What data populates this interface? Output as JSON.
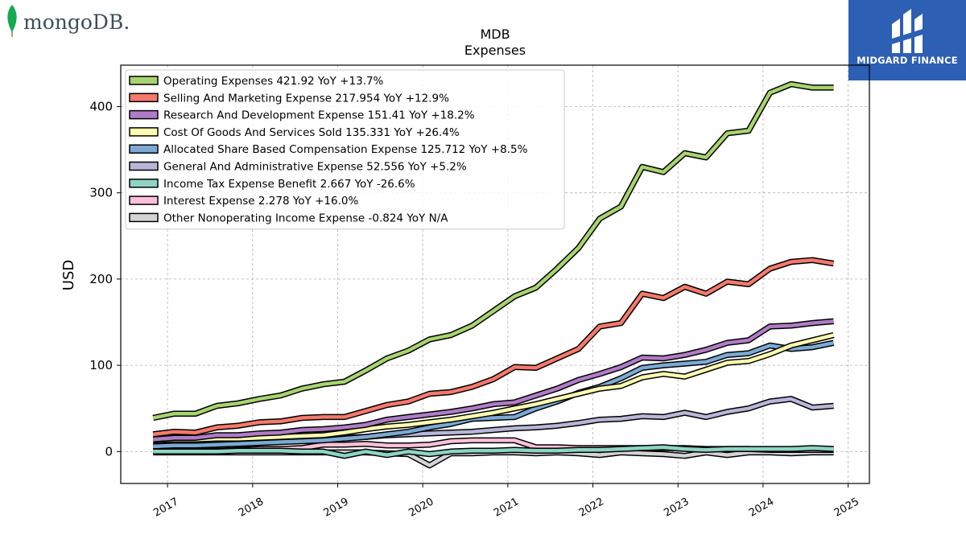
{
  "branding": {
    "left_logo_text": "mongoDB.",
    "right_logo_text": "MIDGARD FINANCE",
    "mongo_green": "#13aa52",
    "midgard_blue": "#2d5fb4"
  },
  "chart_data": {
    "type": "line",
    "title": "MDB",
    "subtitle": "Expenses",
    "xlabel": "",
    "ylabel": "USD",
    "xlim": [
      2016.45,
      2025.25
    ],
    "ylim": [
      -37,
      448
    ],
    "x_ticks": [
      "2017",
      "2018",
      "2019",
      "2020",
      "2021",
      "2022",
      "2023",
      "2024",
      "2025"
    ],
    "y_ticks": [
      0,
      100,
      200,
      300,
      400
    ],
    "grid": true,
    "legend_position": "top-left",
    "x": [
      2016.83,
      2017.08,
      2017.33,
      2017.58,
      2017.83,
      2018.08,
      2018.33,
      2018.58,
      2018.83,
      2019.08,
      2019.33,
      2019.58,
      2019.83,
      2020.08,
      2020.33,
      2020.58,
      2020.83,
      2021.08,
      2021.33,
      2021.58,
      2021.83,
      2022.08,
      2022.33,
      2022.58,
      2022.83,
      2023.08,
      2023.33,
      2023.58,
      2023.83,
      2024.08,
      2024.33,
      2024.58,
      2024.83
    ],
    "series": [
      {
        "name": "Operating Expenses",
        "legend": "Operating Expenses  421.92 YoY +13.7%",
        "color": "#a8d46f",
        "values": [
          39,
          44,
          44,
          53,
          56,
          61,
          65,
          73,
          78,
          81,
          94,
          108,
          117,
          130,
          135,
          146,
          163,
          180,
          190,
          212,
          236,
          270,
          284,
          330,
          324,
          346,
          341,
          369,
          372,
          416,
          426,
          422,
          422
        ]
      },
      {
        "name": "Selling And Marketing Expense",
        "legend": "Selling And Marketing Expense  217.954 YoY +12.9%",
        "color": "#f4796c",
        "values": [
          20,
          23,
          22,
          28,
          30,
          34,
          35,
          39,
          40,
          40,
          47,
          54,
          58,
          67,
          69,
          75,
          84,
          98,
          97,
          108,
          119,
          145,
          149,
          183,
          178,
          191,
          183,
          197,
          194,
          212,
          220,
          222,
          218
        ]
      },
      {
        "name": "Research And Development Expense",
        "legend": "Research And Development Expense  151.41 YoY +18.2%",
        "color": "#b07cc6",
        "values": [
          14,
          16,
          16,
          19,
          19,
          21,
          22,
          25,
          26,
          28,
          31,
          37,
          40,
          43,
          46,
          50,
          55,
          57,
          65,
          73,
          83,
          90,
          98,
          109,
          108,
          112,
          118,
          126,
          129,
          145,
          146,
          149,
          151
        ]
      },
      {
        "name": "Cost Of Goods And Services Sold",
        "legend": "Cost Of Goods And Services Sold  135.331 YoY +26.4%",
        "color": "#fdfcb0",
        "values": [
          13,
          14,
          14,
          15,
          15,
          16,
          17,
          18,
          19,
          22,
          26,
          29,
          31,
          34,
          37,
          41,
          45,
          50,
          55,
          61,
          67,
          73,
          76,
          86,
          90,
          87,
          95,
          103,
          105,
          113,
          123,
          129,
          135
        ]
      },
      {
        "name": "Allocated Share Based Compensation Expense",
        "legend": "Allocated Share Based Compensation Expense  125.712 YoY +8.5%",
        "color": "#7aaad4",
        "values": [
          6,
          7,
          7,
          8,
          9,
          10,
          11,
          12,
          13,
          15,
          17,
          20,
          23,
          28,
          32,
          38,
          39,
          40,
          50,
          58,
          68,
          75,
          85,
          97,
          100,
          102,
          104,
          112,
          114,
          123,
          119,
          121,
          126
        ]
      },
      {
        "name": "General And Administrative Expense",
        "legend": "General And Administrative Expense  52.556 YoY +5.2%",
        "color": "#b8b6d8",
        "values": [
          9,
          10,
          10,
          11,
          11,
          12,
          12,
          13,
          14,
          16,
          17,
          19,
          20,
          21,
          22,
          23,
          25,
          27,
          28,
          30,
          33,
          37,
          38,
          41,
          40,
          45,
          40,
          46,
          50,
          58,
          61,
          51,
          53
        ]
      },
      {
        "name": "Income Tax Expense Benefit",
        "legend": "Income Tax Expense Benefit  2.667 YoY -26.6%",
        "color": "#8dd4c3",
        "values": [
          0,
          0,
          0,
          0,
          1,
          1,
          1,
          0,
          0,
          -5,
          0,
          -4,
          0,
          -3,
          0,
          1,
          1,
          2,
          1,
          1,
          2,
          2,
          3,
          4,
          5,
          3,
          2,
          3,
          3,
          3,
          3,
          4,
          3
        ]
      },
      {
        "name": "Interest Expense",
        "legend": "Interest Expense  2.278 YoY +16.0%",
        "color": "#fbc0d8",
        "values": [
          1,
          1,
          1,
          1,
          2,
          3,
          3,
          4,
          8,
          8,
          9,
          7,
          7,
          8,
          12,
          13,
          13,
          13,
          5,
          5,
          4,
          4,
          4,
          4,
          4,
          4,
          3,
          3,
          3,
          2,
          2,
          2,
          2
        ]
      },
      {
        "name": "Other Nonoperating Income Expense",
        "legend": "Other Nonoperating Income Expense  -0.824 YoY N/A",
        "color": "#d4d4d4",
        "values": [
          -1,
          -1,
          -1,
          -1,
          -1,
          -1,
          -1,
          -1,
          -1,
          -1,
          -1,
          -2,
          -3,
          -16,
          -2,
          -2,
          -1,
          -1,
          -2,
          -1,
          -2,
          -4,
          -1,
          -2,
          -3,
          -5,
          -1,
          -4,
          -1,
          -1,
          -2,
          -1,
          -1
        ]
      }
    ]
  }
}
